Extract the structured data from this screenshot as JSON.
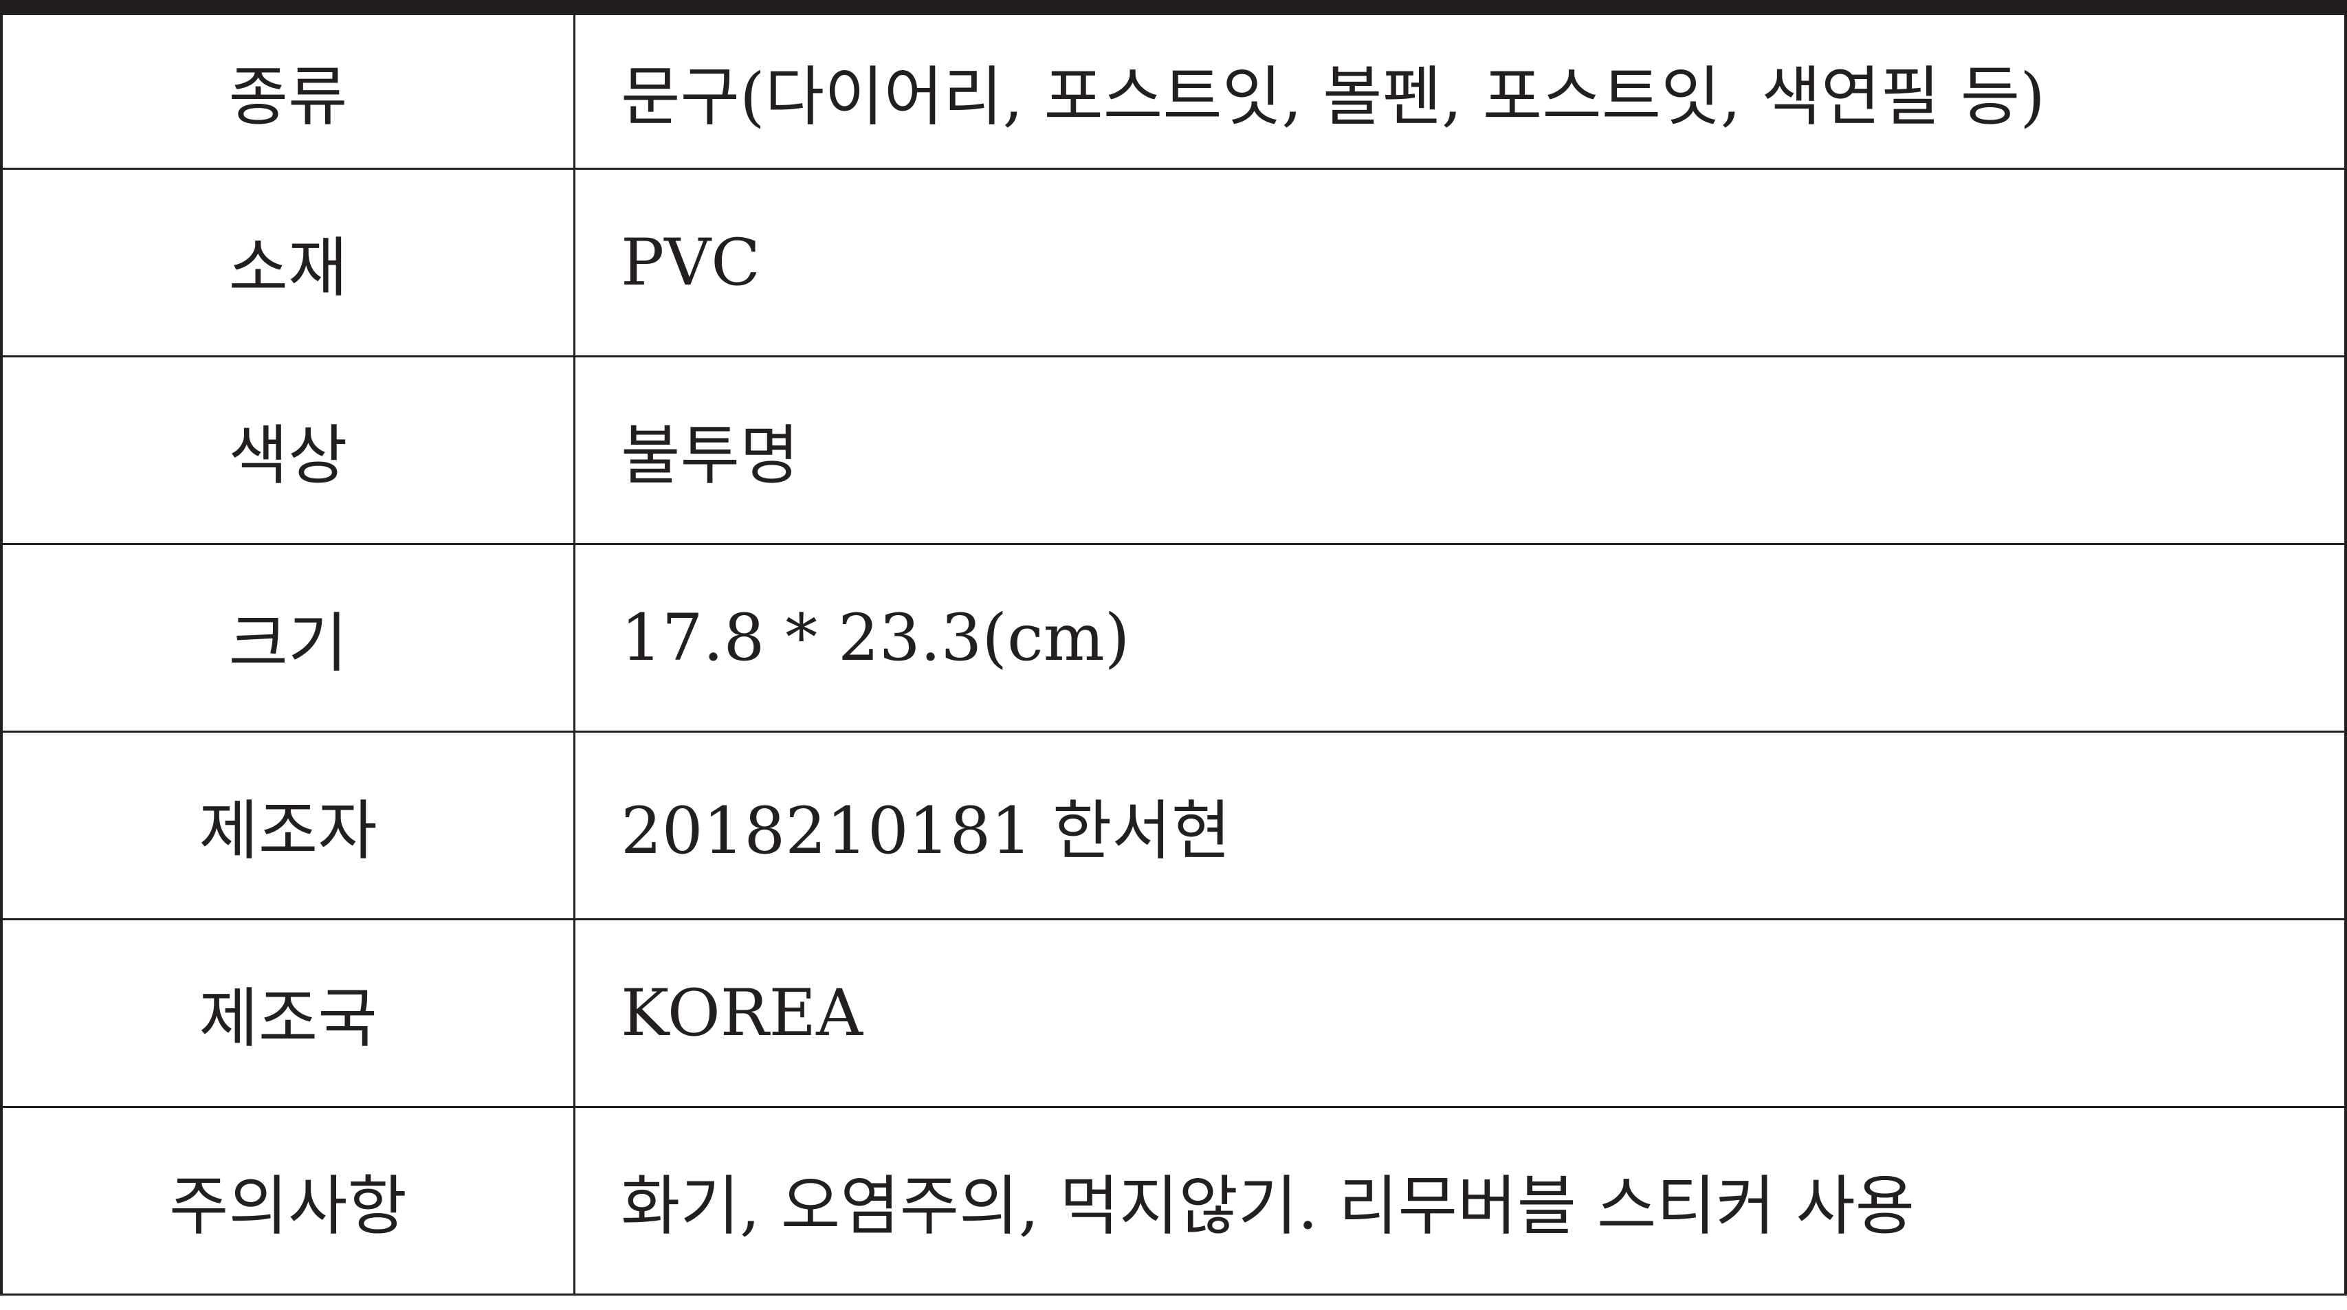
{
  "table": {
    "rows": [
      [
        "종류",
        "문구(다이어리, 포스트잇, 볼펜, 포스트잇, 색연필 등)"
      ],
      [
        "소재",
        "PVC"
      ],
      [
        "색상",
        "불투명"
      ],
      [
        "크기",
        "17.8 * 23.3(cm)"
      ],
      [
        "제조자",
        "2018210181 한서현"
      ],
      [
        "제조국",
        "KOREA"
      ],
      [
        "주의사항",
        "화기, 오염주의, 먹지않기. 리무버블 스티커 사용"
      ]
    ]
  }
}
